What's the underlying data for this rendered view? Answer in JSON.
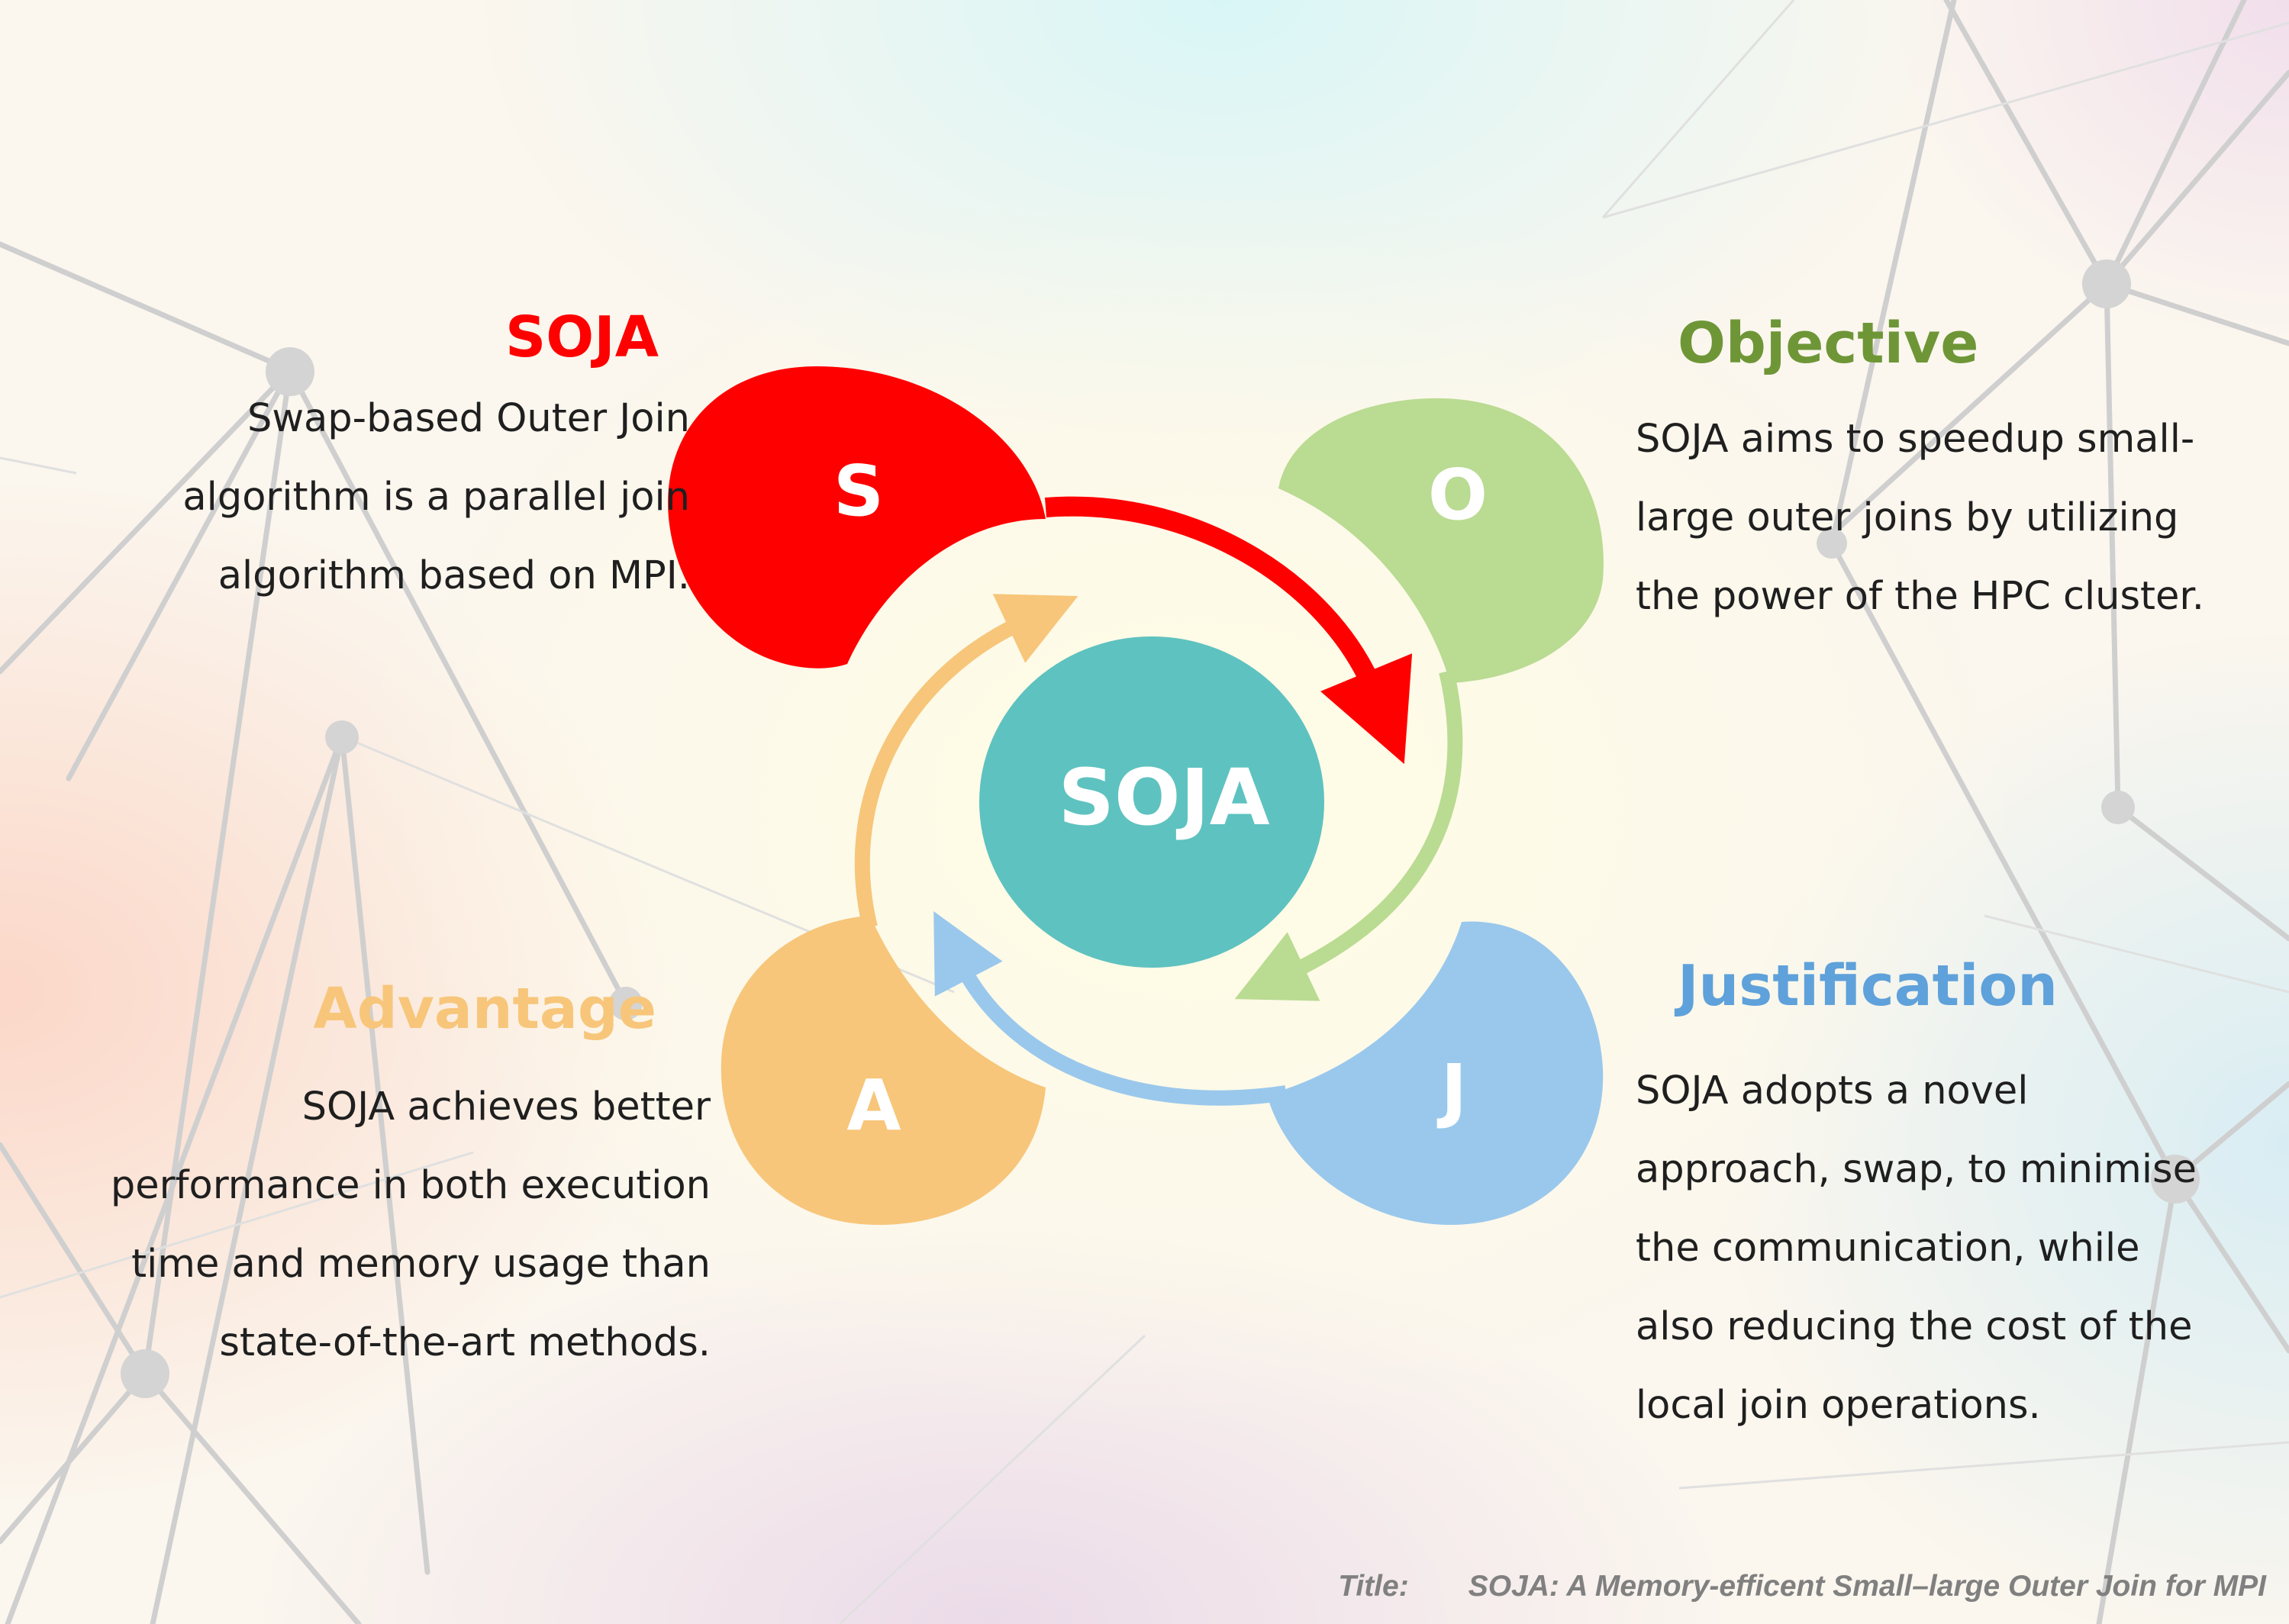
{
  "sections": {
    "s": {
      "letter": "S",
      "title": "SOJA",
      "body": "Swap-based Outer Join\nalgorithm is a parallel join\nalgorithm based  on MPI.",
      "color": "#FF0000"
    },
    "o": {
      "letter": "O",
      "title": "Objective",
      "body": "SOJA aims to speedup small-\nlarge outer joins by utilizing\nthe power of the HPC cluster.",
      "color": "#BADB92",
      "title_color": "#6E9637"
    },
    "j": {
      "letter": "J",
      "title": "Justification",
      "body": "SOJA adopts a novel\napproach, swap, to minimise\nthe communication, while\nalso reducing the cost of the\nlocal join operations.",
      "color": "#9AC8EC",
      "title_color": "#5FA1DA"
    },
    "a": {
      "letter": "A",
      "title": "Advantage",
      "body": "SOJA achieves better\nperformance in both execution\ntime and memory usage than\nstate-of-the-art methods.",
      "color": "#F7C67A",
      "title_color": "#F7C67A"
    }
  },
  "center": {
    "label": "SOJA",
    "color": "#5EC2C0"
  },
  "footer": {
    "label": "Title:",
    "title": "SOJA: A Memory-efficent Small–large Outer Join for MPI"
  }
}
